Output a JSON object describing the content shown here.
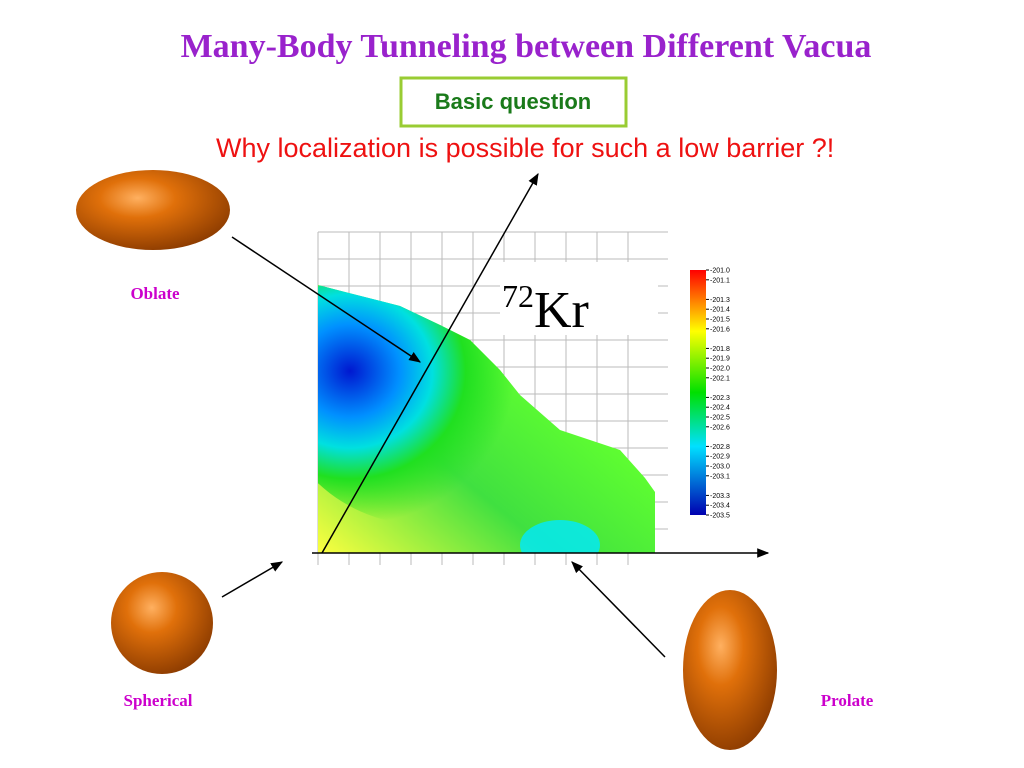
{
  "title": "Many-Body Tunneling between Different Vacua",
  "badge": "Basic question",
  "question": "Why localization is possible for such a low barrier ?!",
  "nucleus": {
    "mass": "72",
    "symbol": "Kr"
  },
  "shapes": {
    "oblate": "Oblate",
    "spherical": "Spherical",
    "prolate": "Prolate"
  },
  "colorbar": {
    "ticks": [
      {
        "value": -201,
        "label": "-201.0"
      },
      {
        "value": -201.1,
        "label": "-201.1"
      },
      {
        "value": -201.3,
        "label": "-201.3"
      },
      {
        "value": -201.4,
        "label": "-201.4"
      },
      {
        "value": -201.5,
        "label": "-201.5"
      },
      {
        "value": -201.6,
        "label": "-201.6"
      },
      {
        "value": -201.8,
        "label": "-201.8"
      },
      {
        "value": -201.9,
        "label": "-201.9"
      },
      {
        "value": -202,
        "label": "-202.0"
      },
      {
        "value": -202.1,
        "label": "-202.1"
      },
      {
        "value": -202.3,
        "label": "-202.3"
      },
      {
        "value": -202.4,
        "label": "-202.4"
      },
      {
        "value": -202.5,
        "label": "-202.5"
      },
      {
        "value": -202.6,
        "label": "-202.6"
      },
      {
        "value": -202.8,
        "label": "-202.8"
      },
      {
        "value": -202.9,
        "label": "-202.9"
      },
      {
        "value": -203,
        "label": "-203.0"
      },
      {
        "value": -203.1,
        "label": "-203.1"
      },
      {
        "value": -203.3,
        "label": "-203.3"
      },
      {
        "value": -203.4,
        "label": "-203.4"
      },
      {
        "value": -203.5,
        "label": "-203.5"
      }
    ]
  }
}
